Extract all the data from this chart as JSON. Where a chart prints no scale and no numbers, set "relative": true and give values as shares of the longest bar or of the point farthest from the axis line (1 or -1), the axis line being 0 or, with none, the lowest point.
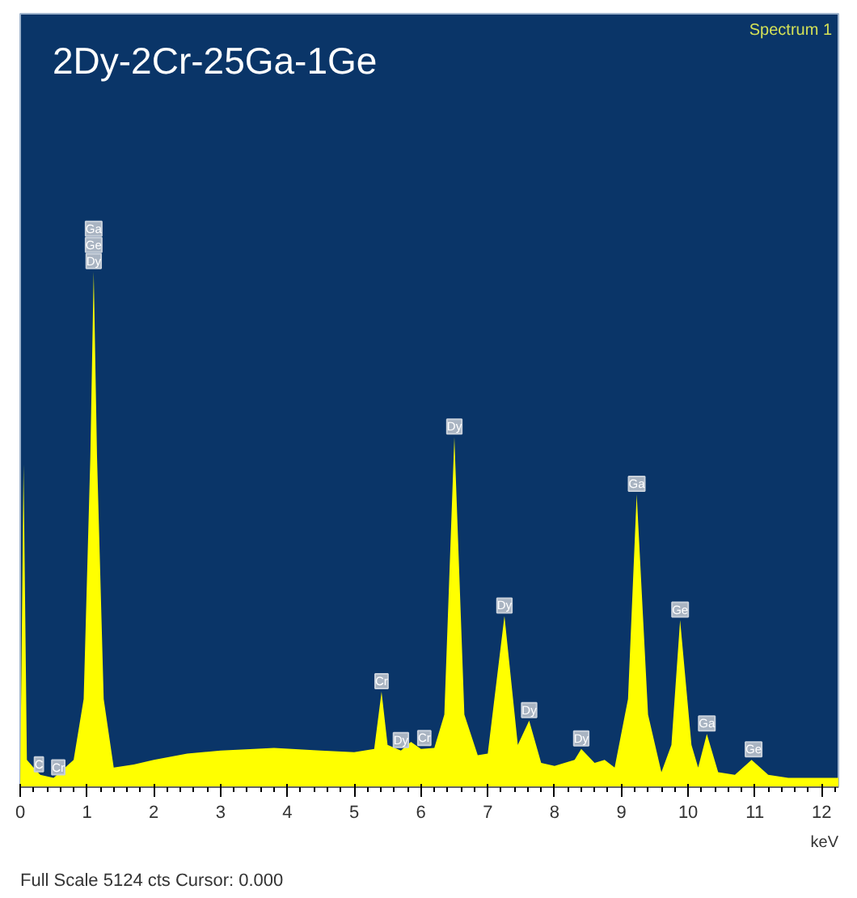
{
  "chart_data": {
    "type": "area",
    "title": "2Dy-2Cr-25Ga-1Ge",
    "subtitle": "Spectrum 1",
    "xlabel": "keV",
    "relative": true,
    "color": "#ffff00",
    "x": [
      0.0,
      0.05,
      0.1,
      0.2,
      0.3,
      0.5,
      0.8,
      0.95,
      1.05,
      1.1,
      1.15,
      1.25,
      1.4,
      1.7,
      2.0,
      2.5,
      3.0,
      3.5,
      3.8,
      4.5,
      5.0,
      5.3,
      5.41,
      5.5,
      5.7,
      5.85,
      6.0,
      6.2,
      6.35,
      6.5,
      6.65,
      6.85,
      7.0,
      7.25,
      7.45,
      7.62,
      7.8,
      8.0,
      8.3,
      8.4,
      8.6,
      8.75,
      8.9,
      9.1,
      9.23,
      9.4,
      9.6,
      9.75,
      9.88,
      10.05,
      10.15,
      10.28,
      10.45,
      10.7,
      10.95,
      11.2,
      11.5,
      12.0,
      12.25
    ],
    "values": [
      0,
      0.626,
      0.053,
      0.038,
      0.024,
      0.018,
      0.053,
      0.171,
      0.641,
      1.0,
      0.641,
      0.171,
      0.038,
      0.044,
      0.053,
      0.065,
      0.071,
      0.074,
      0.076,
      0.071,
      0.068,
      0.074,
      0.185,
      0.082,
      0.071,
      0.088,
      0.074,
      0.076,
      0.141,
      0.679,
      0.141,
      0.062,
      0.065,
      0.332,
      0.082,
      0.129,
      0.047,
      0.041,
      0.053,
      0.074,
      0.047,
      0.053,
      0.038,
      0.171,
      0.568,
      0.141,
      0.029,
      0.082,
      0.324,
      0.082,
      0.038,
      0.103,
      0.029,
      0.024,
      0.053,
      0.024,
      0.018,
      0.018,
      0.018
    ],
    "xlim": [
      0,
      12.25
    ],
    "xticks": [
      0,
      1,
      2,
      3,
      4,
      5,
      6,
      7,
      8,
      9,
      10,
      11,
      12
    ],
    "tick_labels": "x",
    "grid": false,
    "annotations": [
      {
        "text": "C",
        "x": 0.28,
        "y": 0.024
      },
      {
        "text": "Cr",
        "x": 0.57,
        "y": 0.018
      },
      {
        "text": "Dy",
        "x": 1.1,
        "y": 1.0
      },
      {
        "text": "Ge",
        "x": 1.1,
        "y": 1.0
      },
      {
        "text": "Ga",
        "x": 1.1,
        "y": 1.0
      },
      {
        "text": "Cr",
        "x": 5.41,
        "y": 0.185
      },
      {
        "text": "Dy",
        "x": 5.7,
        "y": 0.071
      },
      {
        "text": "Cr",
        "x": 6.05,
        "y": 0.075
      },
      {
        "text": "Dy",
        "x": 6.5,
        "y": 0.679
      },
      {
        "text": "Dy",
        "x": 7.25,
        "y": 0.332
      },
      {
        "text": "Dy",
        "x": 7.62,
        "y": 0.129
      },
      {
        "text": "Dy",
        "x": 8.4,
        "y": 0.074
      },
      {
        "text": "Ga",
        "x": 9.23,
        "y": 0.568
      },
      {
        "text": "Ge",
        "x": 9.88,
        "y": 0.324
      },
      {
        "text": "Ga",
        "x": 10.28,
        "y": 0.103
      },
      {
        "text": "Ge",
        "x": 10.98,
        "y": 0.053
      },
      "Full Scale 5124 cts Cursor: 0.000"
    ]
  }
}
